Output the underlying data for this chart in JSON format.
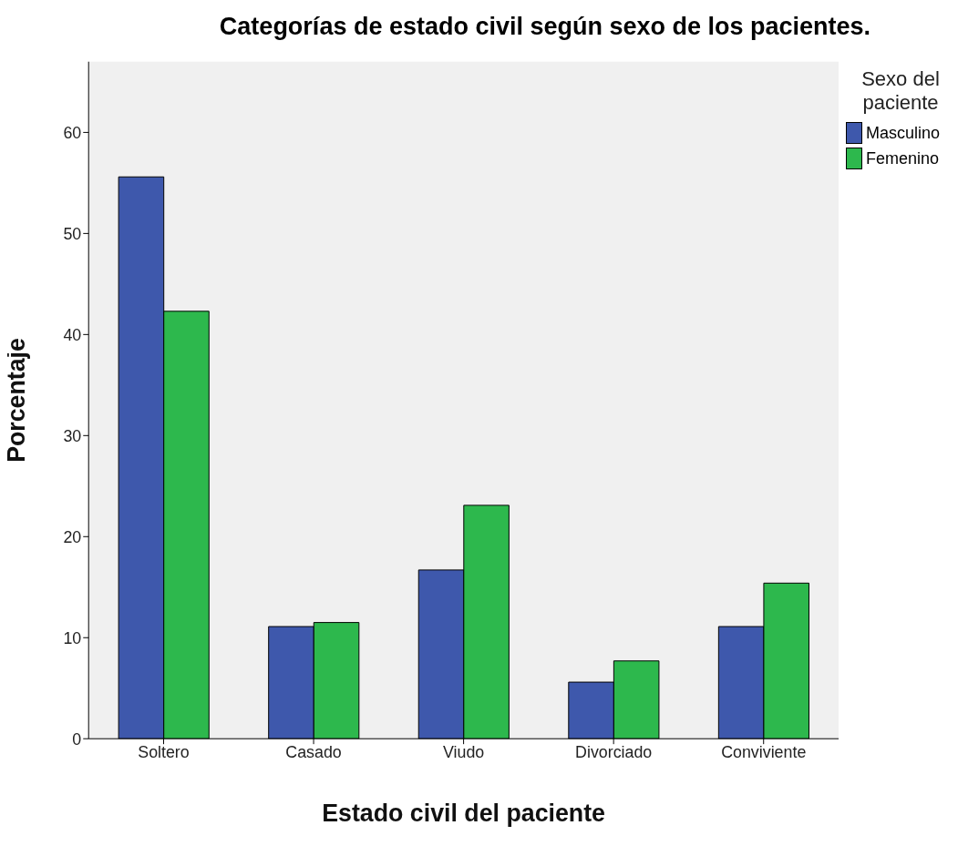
{
  "chart_data": {
    "type": "bar",
    "title": "Categorías de estado civil según sexo de los pacientes.",
    "xlabel": "Estado civil del paciente",
    "ylabel": "Porcentaje",
    "legend_title": "Sexo del paciente",
    "categories": [
      "Soltero",
      "Casado",
      "Viudo",
      "Divorciado",
      "Conviviente"
    ],
    "series": [
      {
        "name": "Masculino",
        "color": "#3e58ac",
        "values": [
          55.6,
          11.1,
          16.7,
          5.6,
          11.1
        ]
      },
      {
        "name": "Femenino",
        "color": "#2db84d",
        "values": [
          42.3,
          11.5,
          23.1,
          7.7,
          15.4
        ]
      }
    ],
    "ylim": [
      0,
      67
    ],
    "yticks": [
      0,
      10,
      20,
      30,
      40,
      50,
      60
    ],
    "grid": false,
    "legend": "right"
  }
}
